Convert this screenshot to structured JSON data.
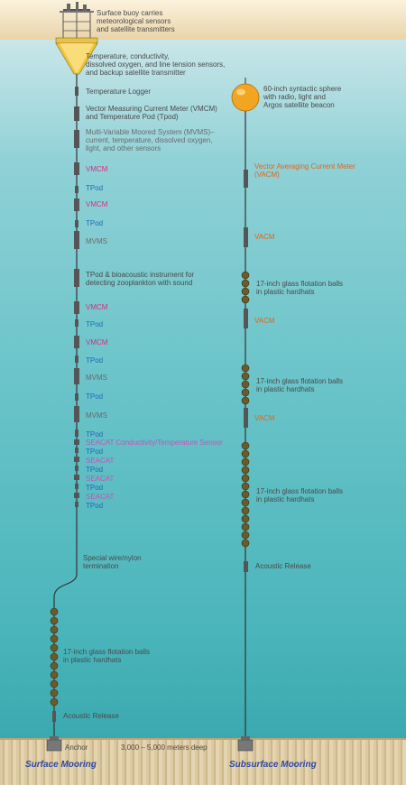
{
  "surface": {
    "buoy_label": [
      "Surface buoy carries",
      "meteorological sensors",
      "and satellite transmitters"
    ],
    "sensors_label": [
      "Temperature, conductivity,",
      "dissolved oxygen, and line tension sensors,",
      "and backup satellite transmitter"
    ],
    "temp_logger": "Temperature Logger",
    "vmcm_long": "Vector Measuring Current Meter (VMCM)",
    "and_text": "and",
    "tpod_long": "Temperature Pod (Tpod)",
    "mvms_long": [
      "Multi-Variable Moored System (MVMS)–",
      "current, temperature, dissolved oxygen,",
      "light, and other sensors"
    ],
    "instruments": [
      {
        "text": "VMCM",
        "color": "magenta"
      },
      {
        "text": "TPod",
        "color": "blue"
      },
      {
        "text": "VMCM",
        "color": "magenta"
      },
      {
        "text": "TPod",
        "color": "blue"
      },
      {
        "text": "MVMS",
        "color": "gray"
      }
    ],
    "bioacoustic": [
      "TPod & bioacoustic instrument for",
      "detecting zooplankton with sound"
    ],
    "instruments2": [
      {
        "text": "VMCM",
        "color": "magenta"
      },
      {
        "text": "TPod",
        "color": "blue"
      },
      {
        "text": "VMCM",
        "color": "magenta"
      },
      {
        "text": "TPod",
        "color": "blue"
      },
      {
        "text": "MVMS",
        "color": "gray"
      },
      {
        "text": "TPod",
        "color": "blue"
      },
      {
        "text": "MVMS",
        "color": "gray"
      }
    ],
    "tpod_a": "TPod",
    "seacat_long": "SEACAT Conductivity/Temperature Sensor",
    "seacat_stack": [
      {
        "text": "TPod",
        "color": "blue"
      },
      {
        "text": "SEACAT",
        "color": "seacat"
      },
      {
        "text": "TPod",
        "color": "blue"
      },
      {
        "text": "SEACAT",
        "color": "seacat"
      },
      {
        "text": "TPod",
        "color": "blue"
      },
      {
        "text": "SEACAT",
        "color": "seacat"
      },
      {
        "text": "TPod",
        "color": "blue"
      }
    ],
    "termination": [
      "Special wire/nylon",
      "termination"
    ],
    "flotation": [
      "17-inch glass flotation balls",
      "in plastic hardhats"
    ],
    "release": "Acoustic Release",
    "anchor": "Anchor",
    "title": "Surface Mooring"
  },
  "subsurface": {
    "sphere": [
      "60-inch syntactic sphere",
      "with radio, light and",
      "Argos satellite beacon"
    ],
    "vacm_long": [
      "Vector Averaging Current Meter",
      "(VACM)"
    ],
    "vacm": "VACM",
    "flotation": [
      "17-inch glass flotation balls",
      "in plastic hardhats"
    ],
    "release": "Acoustic Release",
    "title": "Subsurface Mooring"
  },
  "depth": "3,000 – 5,000 meters deep",
  "colors": {
    "sphere": "#f2a521",
    "float_ball": "#6b5a2a",
    "line": "#444444",
    "instrument": "#5a5a5a"
  }
}
